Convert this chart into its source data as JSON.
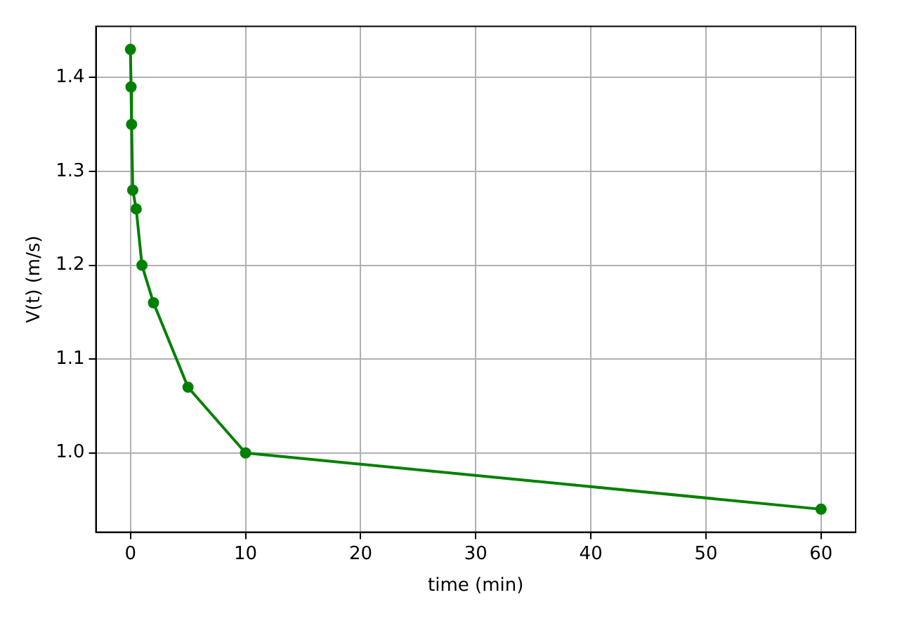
{
  "chart_data": {
    "type": "line",
    "xlabel": "time (min)",
    "ylabel": "V(t) (m/s)",
    "x": [
      0,
      0.05,
      0.1,
      0.2,
      0.5,
      1,
      2,
      5,
      10,
      60
    ],
    "series": [
      {
        "color": "#008000",
        "values": [
          1.43,
          1.39,
          1.35,
          1.28,
          1.26,
          1.2,
          1.16,
          1.07,
          1.0,
          0.94
        ]
      }
    ],
    "xlim": [
      -3,
      63
    ],
    "xticks": [
      0,
      10,
      20,
      30,
      40,
      50,
      60
    ],
    "ylim": [
      0.9155,
      1.4545
    ],
    "yticks": [
      {
        "value": 1.0,
        "label": "1.0"
      },
      {
        "value": 1.1,
        "label": "1.1"
      },
      {
        "value": 1.2,
        "label": "1.2"
      },
      {
        "value": 1.3,
        "label": "1.3"
      },
      {
        "value": 1.4,
        "label": "1.4"
      }
    ],
    "grid": true,
    "marker": "circle",
    "line_style": "solid",
    "legend": false
  }
}
